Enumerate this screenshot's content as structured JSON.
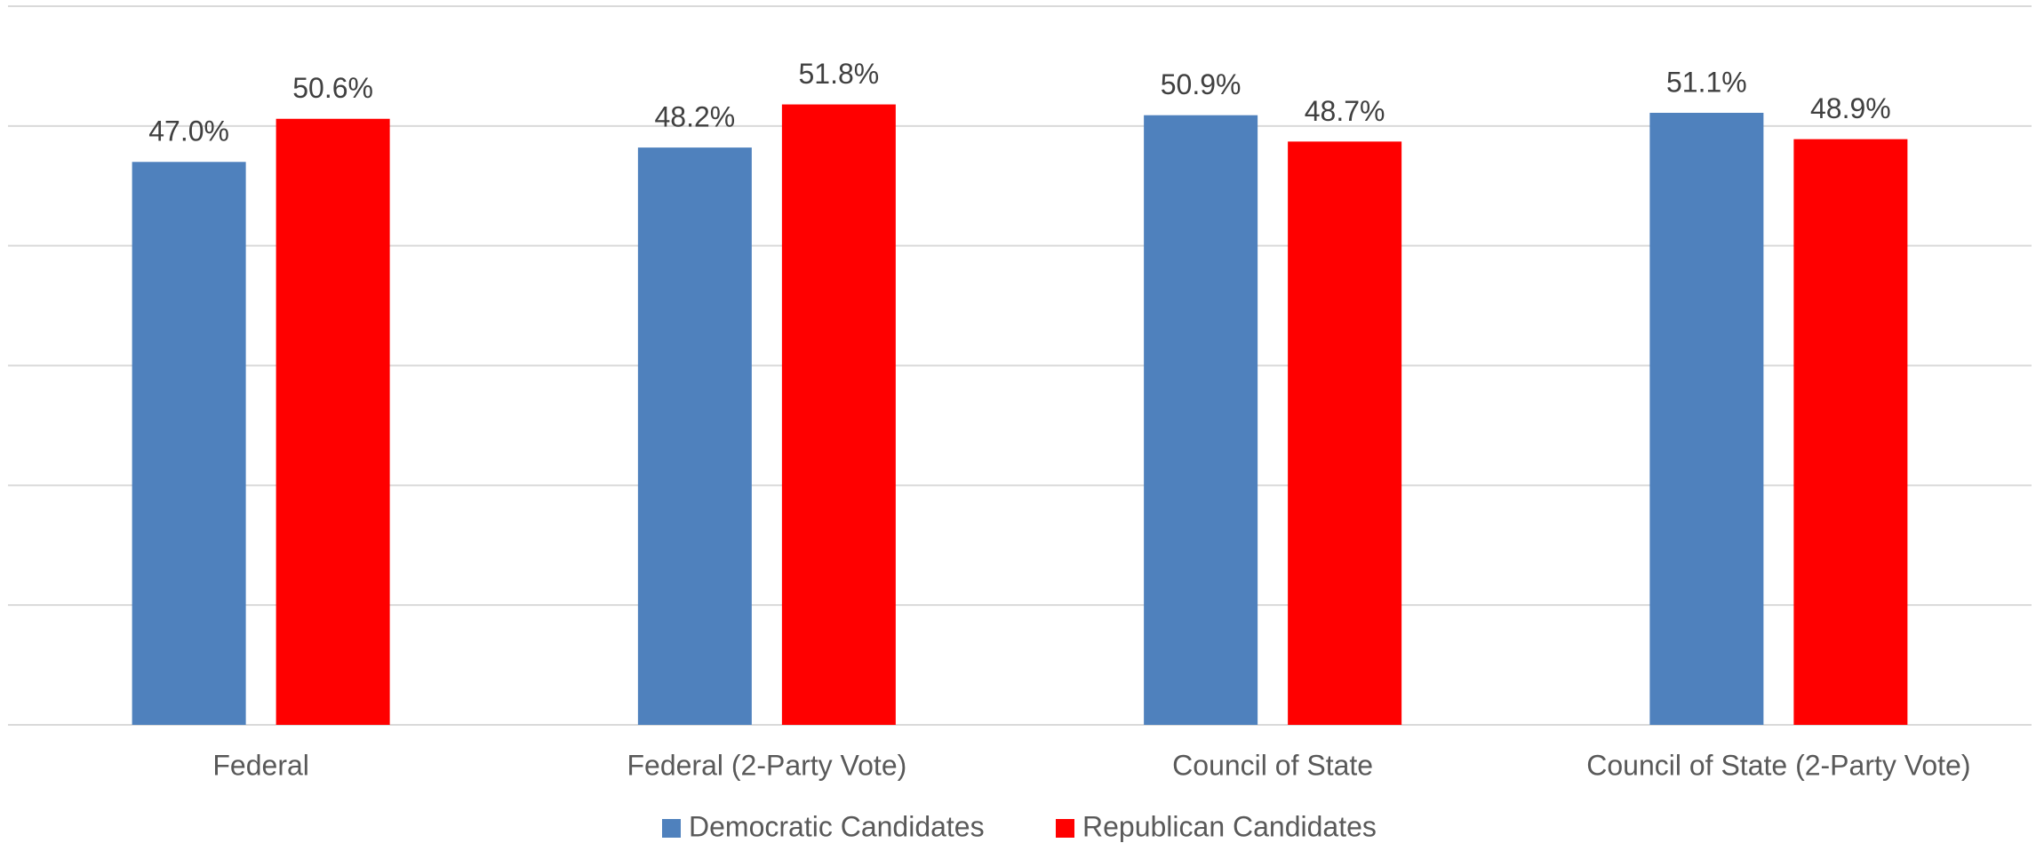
{
  "chart_data": {
    "type": "bar",
    "categories": [
      "Federal",
      "Federal (2-Party Vote)",
      "Council of State",
      "Council of State (2-Party Vote)"
    ],
    "series": [
      {
        "name": "Democratic Candidates",
        "color": "#4f81bd",
        "values": [
          47.0,
          48.2,
          50.9,
          51.1
        ],
        "value_labels": [
          "47.0%",
          "48.2%",
          "50.9%",
          "51.1%"
        ]
      },
      {
        "name": "Republican Candidates",
        "color": "#ff0000",
        "values": [
          50.6,
          51.8,
          48.7,
          48.9
        ],
        "value_labels": [
          "50.6%",
          "51.8%",
          "48.7%",
          "48.9%"
        ]
      }
    ],
    "ylim": [
      0,
      60
    ],
    "yticks": [
      0,
      10,
      20,
      30,
      40,
      50,
      60
    ],
    "grid": true
  }
}
